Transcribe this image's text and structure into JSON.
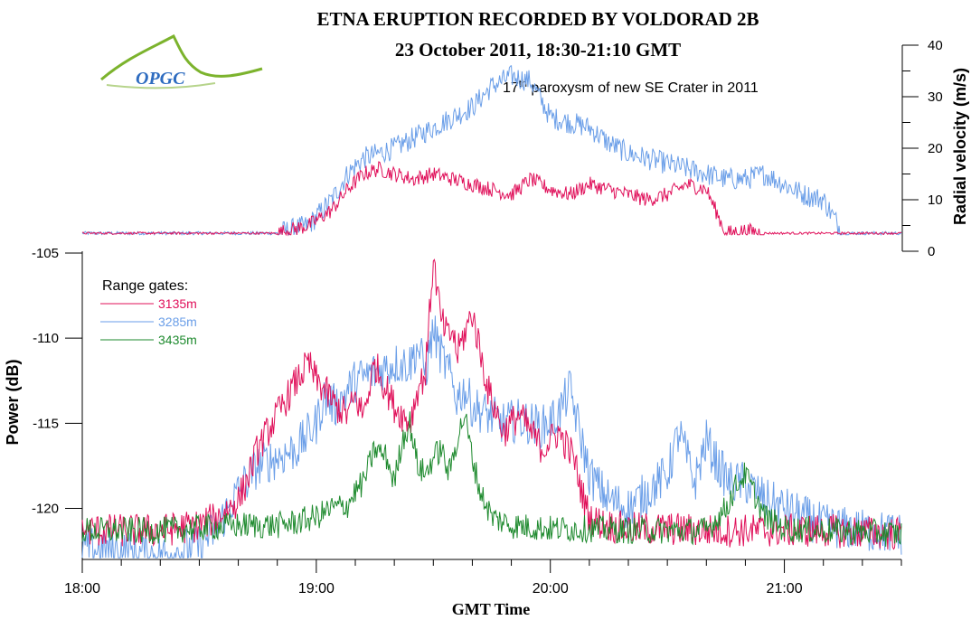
{
  "chart_data": [
    {
      "type": "line",
      "title": "ETNA ERUPTION RECORDED BY VOLDORAD 2B",
      "subtitle": "23 October 2011, 18:30-21:10 GMT",
      "annotation_prefix": "17",
      "annotation_sup": "th",
      "annotation_suffix": " paroxysm of new SE Crater in 2011",
      "logo_text": "OPGC",
      "ylabel": "Radial velocity (m/s)",
      "ylim": [
        0,
        40
      ],
      "yticks": [
        "0",
        "10",
        "20",
        "30",
        "40"
      ],
      "yaxis_side": "right",
      "xlim_minutes": [
        0,
        210
      ],
      "series": [
        {
          "name": "3135m",
          "color": "#e0105a",
          "x_minutes": [
            0,
            20,
            40,
            50,
            58,
            64,
            68,
            72,
            76,
            80,
            85,
            90,
            95,
            100,
            105,
            110,
            115,
            120,
            125,
            130,
            135,
            140,
            145,
            150,
            155,
            160,
            165,
            170,
            175,
            180,
            185,
            190,
            195,
            200,
            210
          ],
          "values": [
            3.5,
            3.5,
            3.5,
            3.5,
            5,
            8,
            12,
            15,
            16,
            15,
            14,
            15,
            14,
            13,
            12,
            11,
            14,
            12,
            11,
            13,
            12,
            11,
            10,
            11,
            13,
            12,
            3.5,
            4,
            3.5,
            3.5,
            3.5,
            3.5,
            3.5,
            3.5,
            3.5
          ]
        },
        {
          "name": "3285m",
          "color": "#6a9ee8",
          "x_minutes": [
            0,
            20,
            40,
            50,
            58,
            64,
            68,
            72,
            76,
            80,
            85,
            90,
            95,
            100,
            105,
            110,
            115,
            120,
            125,
            130,
            135,
            140,
            145,
            150,
            155,
            160,
            165,
            170,
            175,
            180,
            185,
            190,
            195,
            200,
            210
          ],
          "values": [
            3.5,
            3.5,
            3.5,
            3.5,
            5,
            10,
            15,
            18,
            19,
            20,
            22,
            24,
            26,
            28,
            32,
            34,
            33,
            26,
            25,
            24,
            21,
            19,
            18,
            17,
            16,
            15,
            14,
            14,
            15,
            13,
            11,
            10,
            3.5,
            3.5,
            3.5
          ]
        }
      ]
    },
    {
      "type": "line",
      "xlabel": "GMT Time",
      "ylabel": "Power (dB)",
      "ylim": [
        -123,
        -105
      ],
      "yticks": [
        "-105",
        "-110",
        "-115",
        "-120"
      ],
      "xticks": [
        "18:00",
        "19:00",
        "20:00",
        "21:00"
      ],
      "xlim_minutes": [
        0,
        210
      ],
      "legend_title": "Range gates:",
      "legend_placement": "top-left",
      "series": [
        {
          "name": "3135m",
          "color": "#e0105a",
          "x_minutes": [
            0,
            20,
            30,
            35,
            40,
            42,
            45,
            50,
            55,
            58,
            60,
            62,
            65,
            68,
            70,
            72,
            75,
            78,
            80,
            84,
            86,
            88,
            90,
            92,
            94,
            95,
            96,
            100,
            104,
            108,
            112,
            118,
            122,
            126,
            128,
            130,
            132,
            135,
            140,
            150,
            160,
            170,
            190,
            210
          ],
          "values": [
            -121.3,
            -121.3,
            -121.0,
            -120.5,
            -119.5,
            -118.5,
            -116.5,
            -114.5,
            -112.5,
            -111.5,
            -112.5,
            -113.0,
            -114.0,
            -114.5,
            -113.5,
            -114.5,
            -111.5,
            -113.0,
            -114.0,
            -115.0,
            -113.0,
            -112.0,
            -105.3,
            -109.0,
            -110.0,
            -109.5,
            -111.0,
            -108.5,
            -113.0,
            -115.5,
            -114.5,
            -116.5,
            -115.5,
            -117.0,
            -119.0,
            -120.5,
            -120.8,
            -121.0,
            -121.2,
            -121.2,
            -121.3,
            -121.3,
            -121.3,
            -121.5
          ]
        },
        {
          "name": "3285m",
          "color": "#6a9ee8",
          "x_minutes": [
            0,
            20,
            30,
            35,
            40,
            45,
            50,
            55,
            60,
            62,
            65,
            70,
            75,
            80,
            84,
            86,
            88,
            90,
            92,
            94,
            96,
            98,
            100,
            104,
            108,
            112,
            118,
            122,
            125,
            130,
            135,
            140,
            145,
            150,
            153,
            155,
            157,
            160,
            163,
            166,
            170,
            175,
            180,
            185,
            190,
            200,
            210
          ],
          "values": [
            -122.3,
            -122.8,
            -122.2,
            -121.0,
            -119.0,
            -117.5,
            -117.0,
            -116.5,
            -115.0,
            -113.5,
            -114.0,
            -112.5,
            -112.0,
            -111.5,
            -111.5,
            -110.5,
            -112.0,
            -109.5,
            -111.0,
            -112.0,
            -113.5,
            -113.0,
            -114.0,
            -114.5,
            -115.0,
            -114.8,
            -115.2,
            -114.5,
            -113.0,
            -118.0,
            -119.5,
            -120.0,
            -119.0,
            -118.0,
            -115.5,
            -117.0,
            -118.5,
            -116.0,
            -117.5,
            -118.5,
            -118.5,
            -119.5,
            -120.0,
            -120.5,
            -121.0,
            -121.3,
            -121.5
          ]
        },
        {
          "name": "3435m",
          "color": "#1e8a2e",
          "x_minutes": [
            0,
            20,
            40,
            50,
            55,
            60,
            64,
            68,
            70,
            72,
            75,
            78,
            80,
            82,
            84,
            86,
            88,
            90,
            92,
            94,
            96,
            98,
            100,
            102,
            105,
            110,
            120,
            130,
            140,
            160,
            165,
            168,
            170,
            175,
            180,
            190,
            210
          ],
          "values": [
            -121.3,
            -121.3,
            -121.0,
            -121.0,
            -120.8,
            -120.5,
            -120.0,
            -119.8,
            -119.0,
            -118.5,
            -116.5,
            -117.0,
            -118.5,
            -116.0,
            -115.0,
            -117.5,
            -118.0,
            -117.0,
            -116.5,
            -118.0,
            -116.0,
            -114.5,
            -117.0,
            -119.0,
            -120.5,
            -121.0,
            -121.2,
            -121.2,
            -121.3,
            -121.3,
            -120.0,
            -118.5,
            -118.0,
            -120.5,
            -121.2,
            -121.3,
            -121.5
          ]
        }
      ]
    }
  ]
}
